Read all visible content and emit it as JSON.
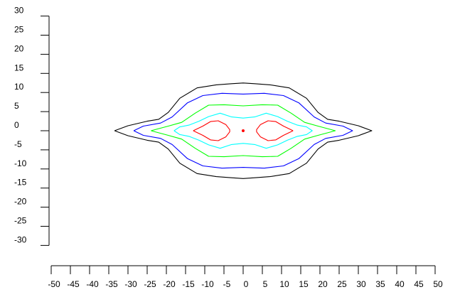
{
  "chart_data": {
    "type": "contour",
    "title": "",
    "xlabel": "",
    "ylabel": "",
    "xlim": [
      -50,
      50
    ],
    "ylim": [
      -30,
      30
    ],
    "x_ticks": [
      -50,
      -45,
      -40,
      -35,
      -30,
      -25,
      -20,
      -15,
      -10,
      -5,
      0,
      5,
      10,
      15,
      20,
      25,
      30,
      35,
      40,
      45,
      50
    ],
    "y_ticks": [
      30,
      25,
      20,
      15,
      10,
      5,
      0,
      -5,
      -10,
      -15,
      -20,
      -25,
      -30
    ],
    "grid": false,
    "legend": "none",
    "center_point": {
      "x": 0,
      "y": 0,
      "color": "#ff0000"
    },
    "contours": [
      {
        "color": "#000000",
        "points": [
          [
            -33.5,
            0
          ],
          [
            -30,
            1.3
          ],
          [
            -25,
            2.5
          ],
          [
            -22,
            3
          ],
          [
            -19.5,
            4.8
          ],
          [
            -16.5,
            8.5
          ],
          [
            -12,
            11.2
          ],
          [
            -7,
            12
          ],
          [
            -3,
            12.3
          ],
          [
            0,
            12.5
          ],
          [
            3,
            12.3
          ],
          [
            7,
            12
          ],
          [
            12,
            11.2
          ],
          [
            16.5,
            8.5
          ],
          [
            19.5,
            4.8
          ],
          [
            22,
            3
          ],
          [
            25,
            2.5
          ],
          [
            30,
            1.3
          ],
          [
            33.5,
            0
          ],
          [
            30,
            -1.3
          ],
          [
            25,
            -2.5
          ],
          [
            22,
            -3
          ],
          [
            19.5,
            -4.8
          ],
          [
            16.5,
            -8.5
          ],
          [
            12,
            -11.2
          ],
          [
            7,
            -12
          ],
          [
            3,
            -12.3
          ],
          [
            0,
            -12.5
          ],
          [
            -3,
            -12.3
          ],
          [
            -7,
            -12
          ],
          [
            -12,
            -11.2
          ],
          [
            -16.5,
            -8.5
          ],
          [
            -19.5,
            -4.8
          ],
          [
            -22,
            -3
          ],
          [
            -25,
            -2.5
          ],
          [
            -30,
            -1.3
          ],
          [
            -33.5,
            0
          ]
        ]
      },
      {
        "color": "#0000ff",
        "points": [
          [
            -28.5,
            0
          ],
          [
            -26,
            1.2
          ],
          [
            -21.5,
            2
          ],
          [
            -18.5,
            3.6
          ],
          [
            -14.5,
            7.3
          ],
          [
            -10.5,
            9.2
          ],
          [
            -5.5,
            9.8
          ],
          [
            0,
            9.6
          ],
          [
            5.5,
            9.8
          ],
          [
            10.5,
            9.2
          ],
          [
            14.5,
            7.3
          ],
          [
            18.5,
            3.6
          ],
          [
            21.5,
            2
          ],
          [
            26,
            1.2
          ],
          [
            28.5,
            0
          ],
          [
            26,
            -1.2
          ],
          [
            21.5,
            -2
          ],
          [
            18.5,
            -3.6
          ],
          [
            14.5,
            -7.3
          ],
          [
            10.5,
            -9.2
          ],
          [
            5.5,
            -9.8
          ],
          [
            0,
            -9.6
          ],
          [
            -5.5,
            -9.8
          ],
          [
            -10.5,
            -9.2
          ],
          [
            -14.5,
            -7.3
          ],
          [
            -18.5,
            -3.6
          ],
          [
            -21.5,
            -2
          ],
          [
            -26,
            -1.2
          ],
          [
            -28.5,
            0
          ]
        ]
      },
      {
        "color": "#00ff00",
        "points": [
          [
            -24,
            0
          ],
          [
            -19.5,
            1.2
          ],
          [
            -16,
            2.2
          ],
          [
            -12.5,
            4.6
          ],
          [
            -9,
            6.7
          ],
          [
            -5,
            6.8
          ],
          [
            0,
            6.5
          ],
          [
            5,
            6.8
          ],
          [
            9,
            6.7
          ],
          [
            12.5,
            4.6
          ],
          [
            16,
            2.2
          ],
          [
            19.5,
            1.2
          ],
          [
            24,
            0
          ],
          [
            19.5,
            -1.2
          ],
          [
            16,
            -2.2
          ],
          [
            12.5,
            -4.6
          ],
          [
            9,
            -6.7
          ],
          [
            5,
            -6.8
          ],
          [
            0,
            -6.5
          ],
          [
            -5,
            -6.8
          ],
          [
            -9,
            -6.7
          ],
          [
            -12.5,
            -4.6
          ],
          [
            -16,
            -2.2
          ],
          [
            -19.5,
            -1.2
          ],
          [
            -24,
            0
          ]
        ]
      },
      {
        "color": "#00ffff",
        "points": [
          [
            -18,
            0
          ],
          [
            -16.5,
            1
          ],
          [
            -14,
            1.5
          ],
          [
            -11.5,
            2.5
          ],
          [
            -9,
            3.7
          ],
          [
            -6,
            4.6
          ],
          [
            -3,
            3.6
          ],
          [
            0,
            3.3
          ],
          [
            3,
            3.6
          ],
          [
            6,
            4.6
          ],
          [
            9,
            3.7
          ],
          [
            11.5,
            2.5
          ],
          [
            14,
            1.5
          ],
          [
            16.5,
            1
          ],
          [
            18,
            0
          ],
          [
            16.5,
            -1
          ],
          [
            14,
            -1.5
          ],
          [
            11.5,
            -2.5
          ],
          [
            9,
            -3.7
          ],
          [
            6,
            -4.6
          ],
          [
            3,
            -3.6
          ],
          [
            0,
            -3.3
          ],
          [
            -3,
            -3.6
          ],
          [
            -6,
            -4.6
          ],
          [
            -9,
            -3.7
          ],
          [
            -11.5,
            -2.5
          ],
          [
            -14,
            -1.5
          ],
          [
            -16.5,
            -1
          ],
          [
            -18,
            0
          ]
        ]
      },
      {
        "color": "#ff0000",
        "points": [
          [
            -13,
            0
          ],
          [
            -10.5,
            1.2
          ],
          [
            -8.5,
            2.4
          ],
          [
            -6.5,
            2.6
          ],
          [
            -4.5,
            1.6
          ],
          [
            -3.5,
            0.3
          ],
          [
            -3.5,
            -0.3
          ],
          [
            -4.5,
            -1.6
          ],
          [
            -6.5,
            -2.6
          ],
          [
            -8.5,
            -2.4
          ],
          [
            -10.5,
            -1.2
          ],
          [
            -13,
            0
          ]
        ]
      },
      {
        "color": "#ff0000",
        "points": [
          [
            13,
            0
          ],
          [
            10.5,
            1.2
          ],
          [
            8.5,
            2.4
          ],
          [
            6.5,
            2.6
          ],
          [
            4.5,
            1.6
          ],
          [
            3.5,
            0.3
          ],
          [
            3.5,
            -0.3
          ],
          [
            4.5,
            -1.6
          ],
          [
            6.5,
            -2.6
          ],
          [
            8.5,
            -2.4
          ],
          [
            10.5,
            -1.2
          ],
          [
            13,
            0
          ]
        ]
      }
    ]
  }
}
